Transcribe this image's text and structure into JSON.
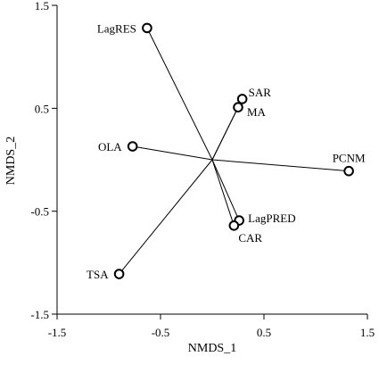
{
  "chart_data": {
    "type": "scatter",
    "title": "",
    "xlabel": "NMDS_1",
    "ylabel": "NMDS_2",
    "xlim": [
      -1.5,
      1.5
    ],
    "ylim": [
      -1.5,
      1.5
    ],
    "xticks": [
      "-1.5",
      "-0.5",
      "0.5",
      "1.5"
    ],
    "yticks": [
      "1.5",
      "0.5",
      "-0.5",
      "-1.5"
    ],
    "grid": false,
    "vectors_from_origin": true,
    "points": [
      {
        "label": "LagRES",
        "x": -0.63,
        "y": 1.28
      },
      {
        "label": "SAR",
        "x": 0.29,
        "y": 0.59
      },
      {
        "label": "MA",
        "x": 0.25,
        "y": 0.51
      },
      {
        "label": "OLA",
        "x": -0.77,
        "y": 0.13
      },
      {
        "label": "PCNM",
        "x": 1.32,
        "y": -0.11
      },
      {
        "label": "LagPRED",
        "x": 0.26,
        "y": -0.59
      },
      {
        "label": "CAR",
        "x": 0.21,
        "y": -0.64
      },
      {
        "label": "TSA",
        "x": -0.9,
        "y": -1.11
      }
    ]
  }
}
